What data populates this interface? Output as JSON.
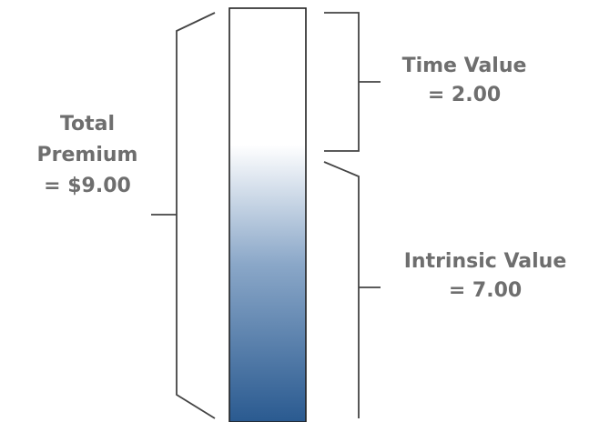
{
  "total_premium": {
    "line1": "Total",
    "line2": "Premium",
    "line3": "= $9.00"
  },
  "time_value": {
    "line1": "Time Value",
    "line2": "= 2.00"
  },
  "intrinsic_value": {
    "line1": "Intrinsic Value",
    "line2": "= 7.00"
  },
  "colors": {
    "bar_top": "#ffffff",
    "bar_bottom": "#2a5a90",
    "text": "#6e6e6e",
    "bracket": "#444444"
  }
}
